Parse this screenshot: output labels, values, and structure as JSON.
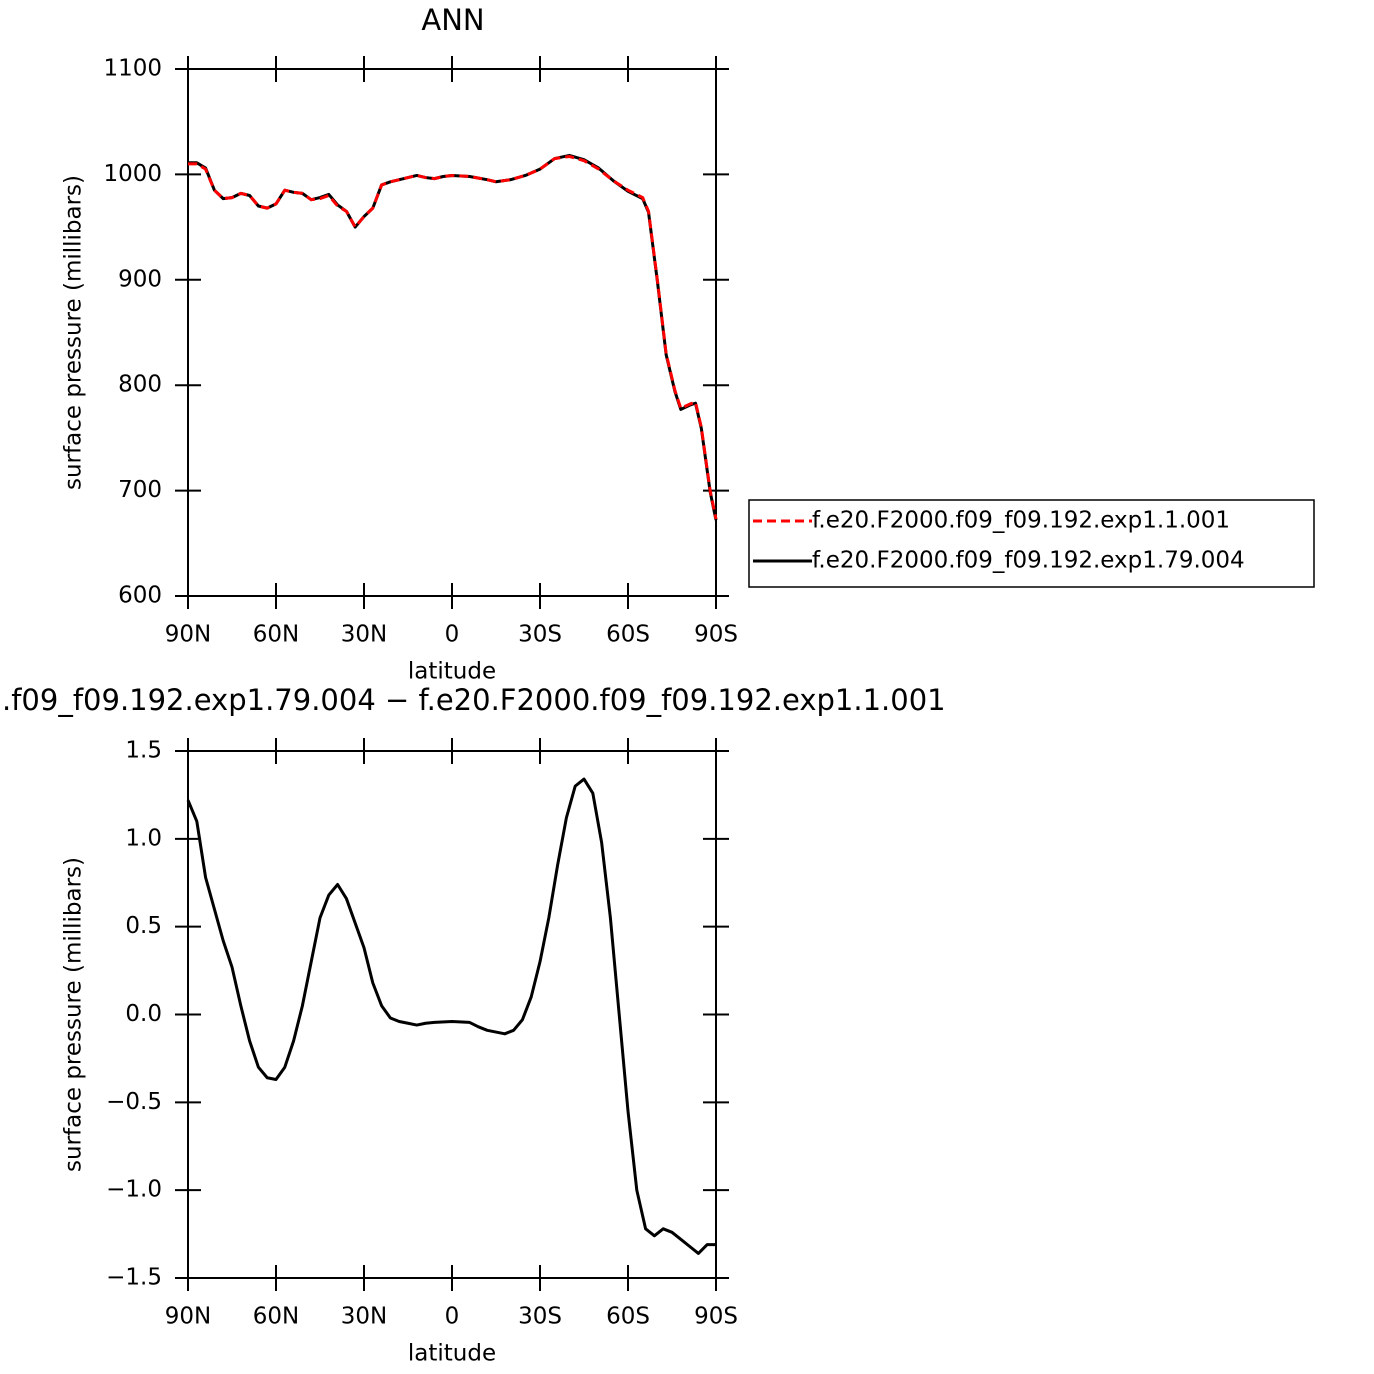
{
  "chart_data": [
    {
      "type": "line",
      "title": "ANN",
      "xlabel": "latitude",
      "ylabel": "surface pressure (millibars)",
      "x": [
        90,
        87,
        84,
        81,
        78,
        75,
        72,
        69,
        66,
        63,
        60,
        57,
        54,
        51,
        48,
        45,
        42,
        39,
        36,
        33,
        30,
        27,
        24,
        21,
        18,
        15,
        12,
        9,
        6,
        3,
        0,
        -6,
        -12,
        -15,
        -20,
        -25,
        -30,
        -35,
        -40,
        -45,
        -50,
        -55,
        -60,
        -65,
        -67,
        -70,
        -73,
        -76,
        -78,
        -81,
        -83,
        -85,
        -88,
        -90
      ],
      "series": [
        {
          "name": "f.e20.F2000.f09_f09.192.exp1.1.001",
          "color": "#ff0000",
          "dashed": true,
          "values": [
            1010,
            1010,
            1005,
            985,
            977,
            978,
            982,
            980,
            970,
            968,
            972,
            985,
            983,
            982,
            976,
            977,
            980,
            970,
            965,
            950,
            960,
            968,
            990,
            993,
            995,
            997,
            999,
            997,
            996,
            998,
            999,
            998,
            995,
            993,
            995,
            999,
            1005,
            1015,
            1017,
            1013,
            1005,
            994,
            985,
            978,
            965,
            900,
            830,
            795,
            778,
            782,
            784,
            760,
            700,
            673
          ]
        },
        {
          "name": "f.e20.F2000.f09_f09.192.exp1.79.004",
          "color": "#000000",
          "dashed": false,
          "values": [
            1011,
            1011,
            1006,
            985,
            977,
            978,
            982,
            980,
            970,
            968,
            972,
            985,
            983,
            982,
            976,
            978,
            981,
            971,
            965,
            950,
            960,
            968,
            990,
            993,
            995,
            997,
            999,
            997,
            996,
            998,
            999,
            998,
            995,
            993,
            995,
            999,
            1005,
            1015,
            1018,
            1014,
            1006,
            994,
            984,
            977,
            964,
            899,
            829,
            794,
            777,
            781,
            783,
            759,
            699,
            672
          ]
        }
      ],
      "xlim": [
        90,
        -90
      ],
      "xticks": [
        {
          "value": 90,
          "label": "90N"
        },
        {
          "value": 60,
          "label": "60N"
        },
        {
          "value": 30,
          "label": "30N"
        },
        0,
        {
          "value": -30,
          "label": "30S"
        },
        {
          "value": -60,
          "label": "60S"
        },
        {
          "value": -90,
          "label": "90S"
        }
      ],
      "ylim": [
        600,
        1100
      ],
      "yticks": [
        600,
        700,
        800,
        900,
        1000,
        1100
      ],
      "legend": "right"
    },
    {
      "type": "line",
      "title": ".f09_f09.192.exp1.79.004 − f.e20.F2000.f09_f09.192.exp1.1.001",
      "xlabel": "latitude",
      "ylabel": "surface pressure (millibars)",
      "x": [
        90,
        87,
        84,
        81,
        78,
        75,
        72,
        69,
        66,
        63,
        60,
        57,
        54,
        51,
        48,
        45,
        42,
        39,
        36,
        33,
        30,
        27,
        24,
        21,
        18,
        15,
        12,
        9,
        6,
        0,
        -6,
        -9,
        -12,
        -15,
        -18,
        -21,
        -24,
        -27,
        -30,
        -33,
        -36,
        -39,
        -42,
        -45,
        -48,
        -51,
        -54,
        -57,
        -60,
        -63,
        -66,
        -69,
        -72,
        -75,
        -78,
        -81,
        -84,
        -87,
        -90
      ],
      "color": "#000000",
      "values": [
        1.22,
        1.1,
        0.78,
        0.6,
        0.42,
        0.27,
        0.05,
        -0.15,
        -0.3,
        -0.36,
        -0.37,
        -0.3,
        -0.15,
        0.05,
        0.3,
        0.55,
        0.68,
        0.74,
        0.66,
        0.52,
        0.38,
        0.18,
        0.05,
        -0.02,
        -0.04,
        -0.05,
        -0.06,
        -0.05,
        -0.045,
        -0.04,
        -0.045,
        -0.07,
        -0.09,
        -0.1,
        -0.11,
        -0.09,
        -0.03,
        0.1,
        0.3,
        0.55,
        0.85,
        1.12,
        1.3,
        1.34,
        1.26,
        0.98,
        0.55,
        0.0,
        -0.55,
        -1.0,
        -1.22,
        -1.26,
        -1.22,
        -1.24,
        -1.28,
        -1.32,
        -1.36,
        -1.31,
        -1.31
      ],
      "xlim": [
        90,
        -90
      ],
      "xticks": [
        {
          "value": 90,
          "label": "90N"
        },
        {
          "value": 60,
          "label": "60N"
        },
        {
          "value": 30,
          "label": "30N"
        },
        0,
        {
          "value": -30,
          "label": "30S"
        },
        {
          "value": -60,
          "label": "60S"
        },
        {
          "value": -90,
          "label": "90S"
        }
      ],
      "ylim": [
        -1.5,
        1.5
      ],
      "yticks": [
        {
          "value": -1.5,
          "label": "−1.5"
        },
        {
          "value": -1.0,
          "label": "−1.0"
        },
        {
          "value": -0.5,
          "label": "−0.5"
        },
        {
          "value": 0.0,
          "label": "0.0"
        },
        0.5,
        {
          "value": 1.0,
          "label": "1.0"
        },
        1.5
      ]
    }
  ]
}
